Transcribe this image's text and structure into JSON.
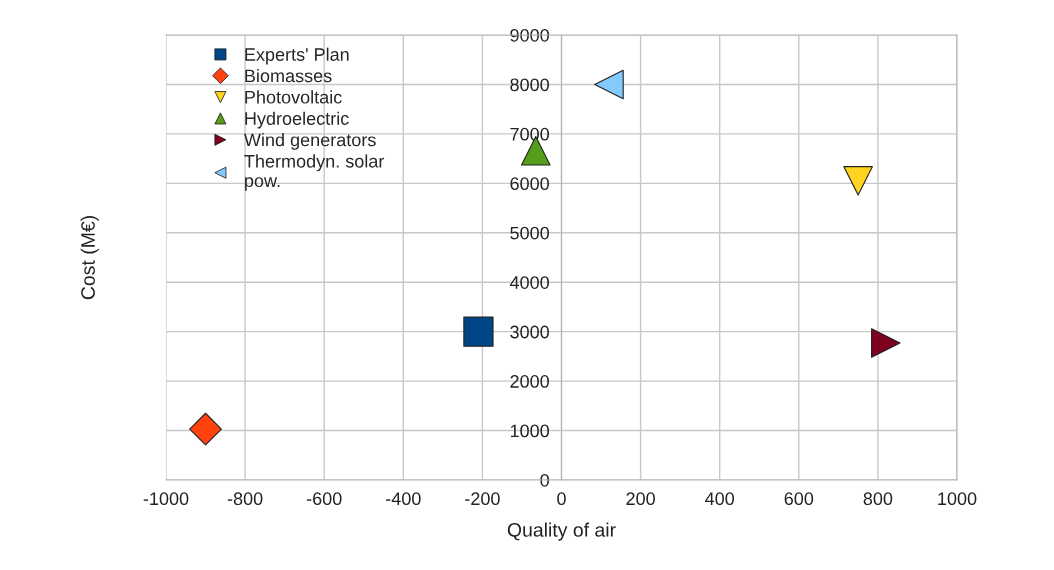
{
  "chart_data": {
    "type": "scatter",
    "xlabel": "Quality of air",
    "ylabel": "Cost (M€)",
    "xlim": [
      -1000,
      1000
    ],
    "xticks": [
      -1000,
      -800,
      -600,
      -400,
      -200,
      0,
      200,
      400,
      600,
      800,
      1000
    ],
    "ylim": [
      0,
      9000
    ],
    "yticks": [
      0,
      1000,
      2000,
      3000,
      4000,
      5000,
      6000,
      7000,
      8000,
      9000
    ],
    "grid": true,
    "legend": "top left",
    "series": [
      {
        "name": "Experts' Plan",
        "color": "#004586",
        "marker": "square",
        "x": [
          -210
        ],
        "values": [
          3000
        ]
      },
      {
        "name": "Biomasses",
        "color": "#ff420e",
        "marker": "diamond",
        "x": [
          -900
        ],
        "values": [
          1030
        ]
      },
      {
        "name": "Photovoltaic",
        "color": "#ffd320",
        "marker": "triangle_down",
        "x": [
          750
        ],
        "values": [
          6050
        ]
      },
      {
        "name": "Hydroelectric",
        "color": "#579d1c",
        "marker": "triangle",
        "x": [
          -65
        ],
        "values": [
          6660
        ]
      },
      {
        "name": "Wind generators",
        "color": "#7e0021",
        "marker": "triangle_right",
        "x": [
          820
        ],
        "values": [
          2770
        ]
      },
      {
        "name": "Thermodyn. solar\npow.",
        "color": "#83caff",
        "marker": "triangle_left",
        "x": [
          120
        ],
        "values": [
          8000
        ]
      }
    ]
  }
}
